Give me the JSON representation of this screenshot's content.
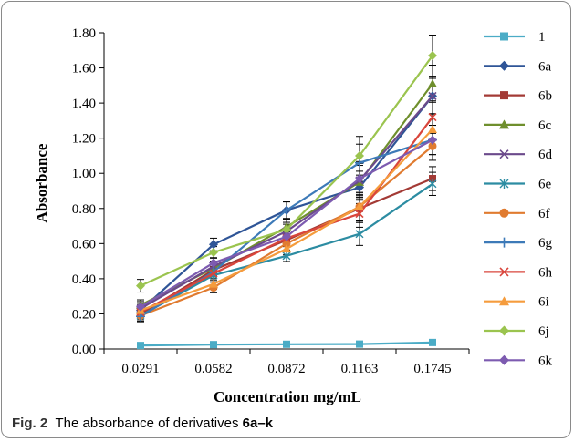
{
  "caption": {
    "label": "Fig. 2",
    "text": "The absorbance of derivatives ",
    "bold": "6a–k"
  },
  "chart_data": {
    "type": "line",
    "title": "",
    "xlabel": "Concentration mg/mL",
    "ylabel": "Absorbance",
    "categories": [
      "0.0291",
      "0.0582",
      "0.0872",
      "0.1163",
      "0.1745"
    ],
    "ylim": [
      0,
      1.8
    ],
    "yticks": [
      "0.00",
      "0.20",
      "0.40",
      "0.60",
      "0.80",
      "1.00",
      "1.20",
      "1.40",
      "1.60",
      "1.80"
    ],
    "grid": false,
    "legend": "right",
    "series": [
      {
        "name": "1",
        "color": "#4bacc6",
        "marker": "square",
        "values": [
          0.02,
          0.025,
          0.027,
          0.028,
          0.037
        ]
      },
      {
        "name": "6a",
        "color": "#2f5597",
        "marker": "diamond",
        "values": [
          0.22,
          0.595,
          0.79,
          0.92,
          1.44
        ]
      },
      {
        "name": "6b",
        "color": "#a33a35",
        "marker": "square",
        "values": [
          0.2,
          0.45,
          0.62,
          0.8,
          0.97
        ]
      },
      {
        "name": "6c",
        "color": "#6f8f2d",
        "marker": "triangle",
        "values": [
          0.25,
          0.46,
          0.695,
          0.95,
          1.51
        ]
      },
      {
        "name": "6d",
        "color": "#6b4a8b",
        "marker": "x",
        "values": [
          0.23,
          0.47,
          0.67,
          0.96,
          1.44
        ]
      },
      {
        "name": "6e",
        "color": "#2c8ca2",
        "marker": "asterisk",
        "values": [
          0.19,
          0.42,
          0.53,
          0.655,
          0.94
        ]
      },
      {
        "name": "6f",
        "color": "#e07b30",
        "marker": "circle",
        "values": [
          0.19,
          0.35,
          0.6,
          0.81,
          1.155
        ]
      },
      {
        "name": "6g",
        "color": "#3d7ab8",
        "marker": "plus",
        "values": [
          0.185,
          0.44,
          0.79,
          1.06,
          1.19
        ]
      },
      {
        "name": "6h",
        "color": "#d9453b",
        "marker": "x",
        "values": [
          0.21,
          0.43,
          0.63,
          0.77,
          1.32
        ]
      },
      {
        "name": "6i",
        "color": "#f59c3d",
        "marker": "triangle",
        "values": [
          0.22,
          0.37,
          0.57,
          0.81,
          1.25
        ]
      },
      {
        "name": "6j",
        "color": "#9bc44f",
        "marker": "diamond",
        "values": [
          0.36,
          0.55,
          0.68,
          1.1,
          1.67
        ]
      },
      {
        "name": "6k",
        "color": "#7d5bb0",
        "marker": "diamond",
        "values": [
          0.24,
          0.49,
          0.64,
          0.97,
          1.19
        ]
      }
    ]
  }
}
